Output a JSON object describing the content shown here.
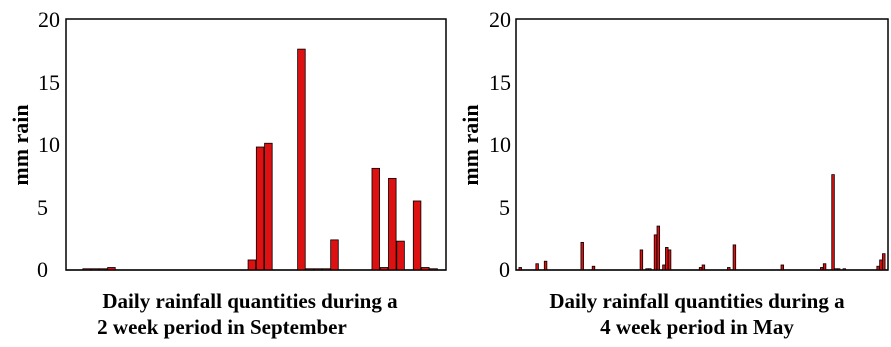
{
  "chart_data": [
    {
      "type": "bar",
      "title": "",
      "caption_lines": [
        "Daily rainfall quantities during a",
        "2 week period in September"
      ],
      "xlabel": "",
      "ylabel": "mm rain",
      "ylim": [
        0,
        20
      ],
      "yticks": [
        "0",
        "5",
        "10",
        "15",
        "20"
      ],
      "grid": false,
      "bar_color": "#dd1111",
      "values": [
        0,
        0,
        0.1,
        0.1,
        0.1,
        0.2,
        0,
        0,
        0,
        0,
        0,
        0,
        0,
        0,
        0,
        0,
        0,
        0,
        0,
        0,
        0,
        0,
        0.8,
        9.8,
        10.1,
        0,
        0,
        0,
        17.6,
        0.1,
        0.1,
        0.1,
        2.4,
        0,
        0,
        0,
        0,
        8.1,
        0.2,
        7.3,
        2.3,
        0,
        5.5,
        0.2,
        0.1,
        0
      ]
    },
    {
      "type": "bar",
      "title": "",
      "caption_lines": [
        "Daily rainfall quantities during a",
        "4 week period in May"
      ],
      "xlabel": "",
      "ylabel": "mm rain",
      "ylim": [
        0,
        20
      ],
      "yticks": [
        "0",
        "5",
        "10",
        "15",
        "20"
      ],
      "grid": false,
      "bar_color": "#dd1111",
      "values": [
        0,
        0.2,
        0,
        0,
        0,
        0,
        0,
        0.5,
        0,
        0,
        0.7,
        0,
        0,
        0,
        0,
        0,
        0,
        0,
        0,
        0,
        0,
        0,
        0,
        2.2,
        0,
        0,
        0,
        0.3,
        0,
        0,
        0,
        0,
        0,
        0,
        0,
        0,
        0,
        0,
        0,
        0,
        0,
        0,
        0,
        0,
        1.6,
        0,
        0.1,
        0.1,
        0,
        2.8,
        3.5,
        0,
        0.4,
        1.8,
        1.6,
        0,
        0,
        0,
        0,
        0,
        0,
        0,
        0,
        0,
        0,
        0.2,
        0.4,
        0,
        0,
        0,
        0,
        0,
        0,
        0,
        0,
        0.2,
        0,
        2.0,
        0,
        0,
        0,
        0,
        0,
        0,
        0,
        0,
        0,
        0,
        0,
        0,
        0,
        0,
        0,
        0,
        0.4,
        0,
        0,
        0,
        0,
        0,
        0,
        0,
        0,
        0,
        0,
        0,
        0,
        0,
        0.2,
        0.5,
        0,
        0,
        7.6,
        0.1,
        0.1,
        0,
        0.1,
        0,
        0,
        0,
        0,
        0,
        0,
        0,
        0,
        0,
        0,
        0,
        0.3,
        0.8,
        1.3,
        0
      ]
    }
  ]
}
